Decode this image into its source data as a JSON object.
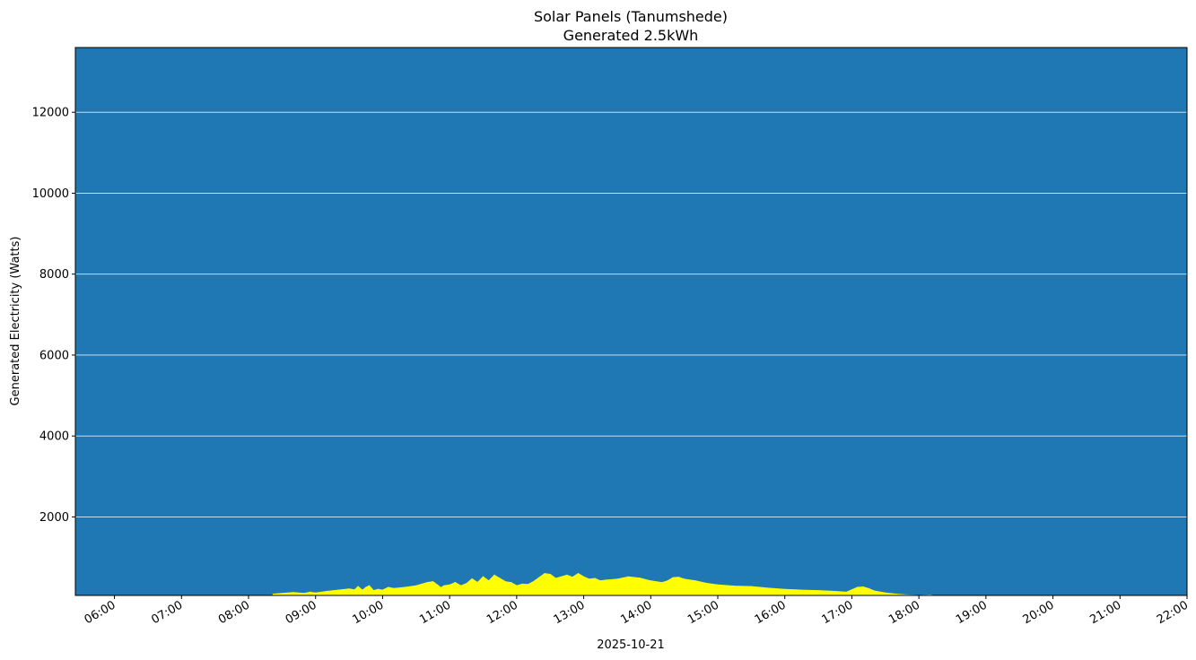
{
  "chart_data": {
    "type": "area",
    "title": "Solar Panels (Tanumshede)",
    "subtitle": "Generated 2.5kWh",
    "xlabel": "2025-10-21",
    "ylabel": "Generated Electricity (Watts)",
    "xlim": [
      "05:25",
      "22:00"
    ],
    "ylim": [
      60,
      13600
    ],
    "x_ticks": [
      "06:00",
      "07:00",
      "08:00",
      "09:00",
      "10:00",
      "11:00",
      "12:00",
      "13:00",
      "14:00",
      "15:00",
      "16:00",
      "17:00",
      "18:00",
      "19:00",
      "20:00",
      "21:00",
      "22:00"
    ],
    "y_ticks": [
      2000,
      4000,
      6000,
      8000,
      10000,
      12000
    ],
    "grid": "horizontal",
    "background_color": "#1f77b4",
    "fill_color": "#ffff00",
    "series": [
      {
        "x": [
          "08:22",
          "08:30",
          "08:40",
          "08:50",
          "08:55",
          "09:00",
          "09:10",
          "09:20",
          "09:30",
          "09:35",
          "09:38",
          "09:42",
          "09:45",
          "09:48",
          "09:52",
          "09:56",
          "10:00",
          "10:05",
          "10:10",
          "10:20",
          "10:30",
          "10:40",
          "10:45",
          "10:50",
          "10:52",
          "10:55",
          "11:00",
          "11:05",
          "11:10",
          "11:15",
          "11:20",
          "11:25",
          "11:30",
          "11:35",
          "11:40",
          "11:45",
          "11:50",
          "11:55",
          "12:00",
          "12:05",
          "12:10",
          "12:15",
          "12:20",
          "12:25",
          "12:30",
          "12:35",
          "12:40",
          "12:45",
          "12:50",
          "12:55",
          "13:00",
          "13:05",
          "13:10",
          "13:15",
          "13:20",
          "13:30",
          "13:40",
          "13:50",
          "14:00",
          "14:10",
          "14:15",
          "14:20",
          "14:25",
          "14:30",
          "14:40",
          "14:50",
          "15:00",
          "15:15",
          "15:30",
          "15:45",
          "16:00",
          "16:15",
          "16:30",
          "16:45",
          "16:55",
          "17:00",
          "17:05",
          "17:10",
          "17:15",
          "17:20",
          "17:30",
          "17:40",
          "17:50",
          "18:00",
          "18:10",
          "18:13"
        ],
        "values": [
          90,
          110,
          130,
          110,
          140,
          120,
          160,
          190,
          220,
          200,
          280,
          190,
          260,
          300,
          180,
          210,
          190,
          260,
          230,
          260,
          300,
          380,
          400,
          300,
          250,
          300,
          320,
          380,
          300,
          350,
          470,
          380,
          520,
          420,
          560,
          480,
          400,
          380,
          300,
          340,
          330,
          400,
          500,
          600,
          580,
          480,
          520,
          560,
          510,
          600,
          520,
          460,
          480,
          420,
          440,
          460,
          520,
          490,
          420,
          380,
          420,
          500,
          510,
          460,
          420,
          360,
          320,
          290,
          280,
          240,
          210,
          190,
          180,
          160,
          140,
          200,
          260,
          270,
          230,
          170,
          120,
          90,
          70,
          60,
          70,
          60
        ]
      }
    ]
  }
}
